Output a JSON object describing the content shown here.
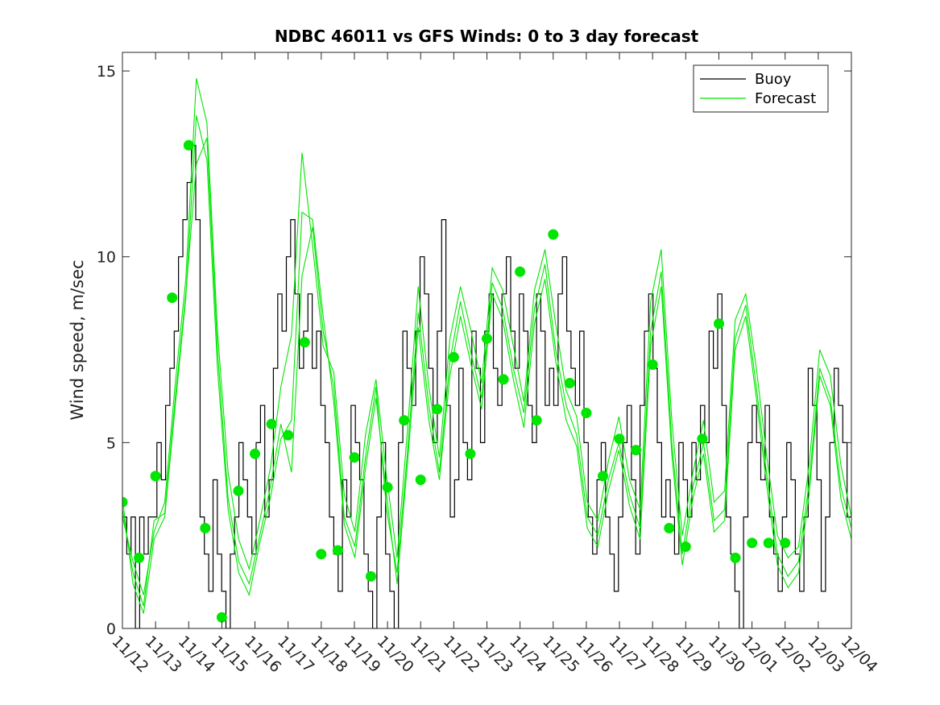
{
  "chart_data": {
    "type": "line",
    "title": "NDBC 46011 vs GFS Winds: 0 to 3 day forecast",
    "ylabel": "Wind speed, m/sec",
    "xlabel": "",
    "ylim": [
      0,
      15.5
    ],
    "xlim": [
      0,
      22
    ],
    "yticks": [
      0,
      5,
      10,
      15
    ],
    "xticks": [
      "11/12",
      "11/13",
      "11/14",
      "11/15",
      "11/16",
      "11/17",
      "11/18",
      "11/19",
      "11/20",
      "11/21",
      "11/22",
      "11/23",
      "11/24",
      "11/25",
      "11/26",
      "11/27",
      "11/28",
      "11/29",
      "11/30",
      "12/01",
      "12/02",
      "12/03",
      "12/04"
    ],
    "grid": false,
    "legend": {
      "placement": "top-right",
      "entries": [
        "Buoy",
        "Forecast"
      ]
    },
    "colors": {
      "buoy": "#000000",
      "forecast": "#00e600",
      "marker": "#00e600",
      "axis": "#262626"
    },
    "buoy_values": [
      3,
      2,
      3,
      0,
      3,
      2,
      3,
      3,
      5,
      4,
      6,
      7,
      8,
      10,
      11,
      12,
      13,
      11,
      3,
      2,
      1,
      4,
      2,
      1,
      0,
      2,
      3,
      5,
      4,
      3,
      2,
      5,
      6,
      3,
      4,
      7,
      9,
      8,
      10,
      11,
      9,
      7,
      8,
      9,
      7,
      8,
      6,
      5,
      3,
      2,
      1,
      4,
      3,
      6,
      5,
      4,
      2,
      1,
      0,
      3,
      5,
      2,
      1,
      0,
      5,
      8,
      7,
      6,
      8,
      10,
      9,
      7,
      5,
      8,
      11,
      6,
      3,
      4,
      7,
      5,
      4,
      8,
      7,
      5,
      8,
      9,
      7,
      6,
      9,
      10,
      8,
      7,
      9,
      8,
      6,
      5,
      9,
      8,
      6,
      7,
      6,
      9,
      10,
      8,
      7,
      6,
      8,
      5,
      3,
      2,
      4,
      5,
      3,
      2,
      1,
      3,
      5,
      6,
      4,
      2,
      6,
      8,
      9,
      7,
      5,
      3,
      4,
      3,
      2,
      5,
      4,
      3,
      5,
      4,
      6,
      5,
      8,
      7,
      9,
      6,
      3,
      2,
      1,
      0,
      3,
      5,
      6,
      5,
      4,
      6,
      3,
      2,
      1,
      3,
      5,
      4,
      2,
      1,
      3,
      7,
      6,
      4,
      1,
      3,
      5,
      7,
      6,
      5,
      3
    ],
    "forecast_runs": [
      [
        3.2,
        1.5,
        0.6,
        2.9,
        3.1,
        6.2,
        9.0,
        12.5,
        13.2,
        7.5,
        3.5,
        1.8,
        1.2,
        2.5,
        3.8,
        5.5,
        4.2,
        9.5,
        10.8,
        8.0,
        6.5,
        3.0,
        2.2,
        4.6,
        6.5,
        3.2,
        1.5,
        4.8,
        8.5,
        6.0,
        4.2,
        7.2,
        8.8,
        7.4,
        6.2,
        9.3,
        8.6,
        7.0,
        5.8,
        8.6,
        9.8,
        7.5,
        6.0,
        5.2,
        3.0,
        2.5,
        4.0,
        5.0,
        3.6,
        2.7,
        8.0,
        9.6,
        5.0,
        2.0,
        3.8,
        5.0,
        2.9,
        3.2,
        7.8,
        8.7,
        6.5,
        4.1,
        2.0,
        1.4,
        1.8,
        3.9,
        7.0,
        6.2,
        3.8,
        2.7
      ],
      [
        3.0,
        1.8,
        0.9,
        2.6,
        3.4,
        6.6,
        9.4,
        14.8,
        13.6,
        8.0,
        4.2,
        2.4,
        1.6,
        2.9,
        4.3,
        6.5,
        7.9,
        12.8,
        10.3,
        7.6,
        6.9,
        3.6,
        2.6,
        5.2,
        6.7,
        4.1,
        1.9,
        5.4,
        9.2,
        6.5,
        4.6,
        7.8,
        9.2,
        8.0,
        6.6,
        9.7,
        9.1,
        7.6,
        6.1,
        9.1,
        10.2,
        8.2,
        6.4,
        5.7,
        3.4,
        2.9,
        4.5,
        5.7,
        4.0,
        3.2,
        8.8,
        10.2,
        5.6,
        2.5,
        4.2,
        5.6,
        3.4,
        3.7,
        8.3,
        9.0,
        7.0,
        4.6,
        2.5,
        1.9,
        2.2,
        4.4,
        7.5,
        6.8,
        4.4,
        3.0
      ],
      [
        3.5,
        1.2,
        0.4,
        2.4,
        3.0,
        6.0,
        8.9,
        13.8,
        12.6,
        7.0,
        3.2,
        1.5,
        0.9,
        2.3,
        3.5,
        5.1,
        5.6,
        11.2,
        11.0,
        8.4,
        6.1,
        2.8,
        1.9,
        4.3,
        6.2,
        3.6,
        1.2,
        4.5,
        8.1,
        5.6,
        4.0,
        6.8,
        8.4,
        7.1,
        5.9,
        9.0,
        8.3,
        6.7,
        5.4,
        8.2,
        9.4,
        7.2,
        5.6,
        4.9,
        2.7,
        2.2,
        3.7,
        4.8,
        3.3,
        2.4,
        7.6,
        9.2,
        4.7,
        1.7,
        3.5,
        4.7,
        2.6,
        2.9,
        7.5,
        8.4,
        6.2,
        3.8,
        1.7,
        1.1,
        1.5,
        3.6,
        6.8,
        6.0,
        3.5,
        2.4
      ]
    ],
    "forecast_points": [
      3.4,
      1.9,
      4.1,
      8.9,
      13.0,
      2.7,
      0.3,
      3.7,
      4.7,
      5.5,
      5.2,
      7.7,
      2.0,
      2.1,
      4.6,
      1.4,
      3.8,
      5.6,
      4.0,
      5.9,
      7.3,
      4.7,
      7.8,
      6.7,
      9.6,
      5.6,
      10.6,
      6.6,
      5.8,
      4.1,
      5.1,
      4.8,
      7.1,
      2.7,
      2.2,
      5.1,
      8.2,
      1.9,
      2.3,
      2.3,
      2.3
    ]
  }
}
